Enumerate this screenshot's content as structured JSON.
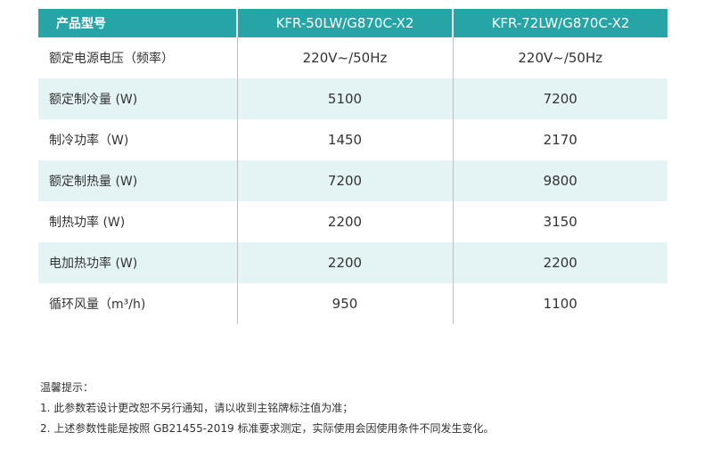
{
  "table": {
    "headers": [
      "产品型号",
      "KFR-50LW/G870C-X2",
      "KFR-72LW/G870C-X2"
    ],
    "rows": [
      {
        "label": "额定电源电压（频率）",
        "v1": "220V~/50Hz",
        "v2": "220V~/50Hz"
      },
      {
        "label": "额定制冷量 (W)",
        "v1": "5100",
        "v2": "7200"
      },
      {
        "label": "制冷功率（W)",
        "v1": "1450",
        "v2": "2170"
      },
      {
        "label": "额定制热量 (W)",
        "v1": "7200",
        "v2": "9800"
      },
      {
        "label": "制热功率 (W)",
        "v1": "2200",
        "v2": "3150"
      },
      {
        "label": "电加热功率 (W)",
        "v1": "2200",
        "v2": "2200"
      },
      {
        "label": "循环风量（m³/h)",
        "v1": "950",
        "v2": "1100"
      }
    ]
  },
  "notes": {
    "title": "温馨提示：",
    "line1": "1. 此参数若设计更改恕不另行通知，请以收到主铭牌标注值为准；",
    "line2": "2. 上述参数性能是按照 GB21455-2019 标准要求测定，实际使用会因使用条件不同发生变化。"
  },
  "colors": {
    "header_bg": "#27a4a6",
    "stripe_bg": "#e4f3f3"
  }
}
